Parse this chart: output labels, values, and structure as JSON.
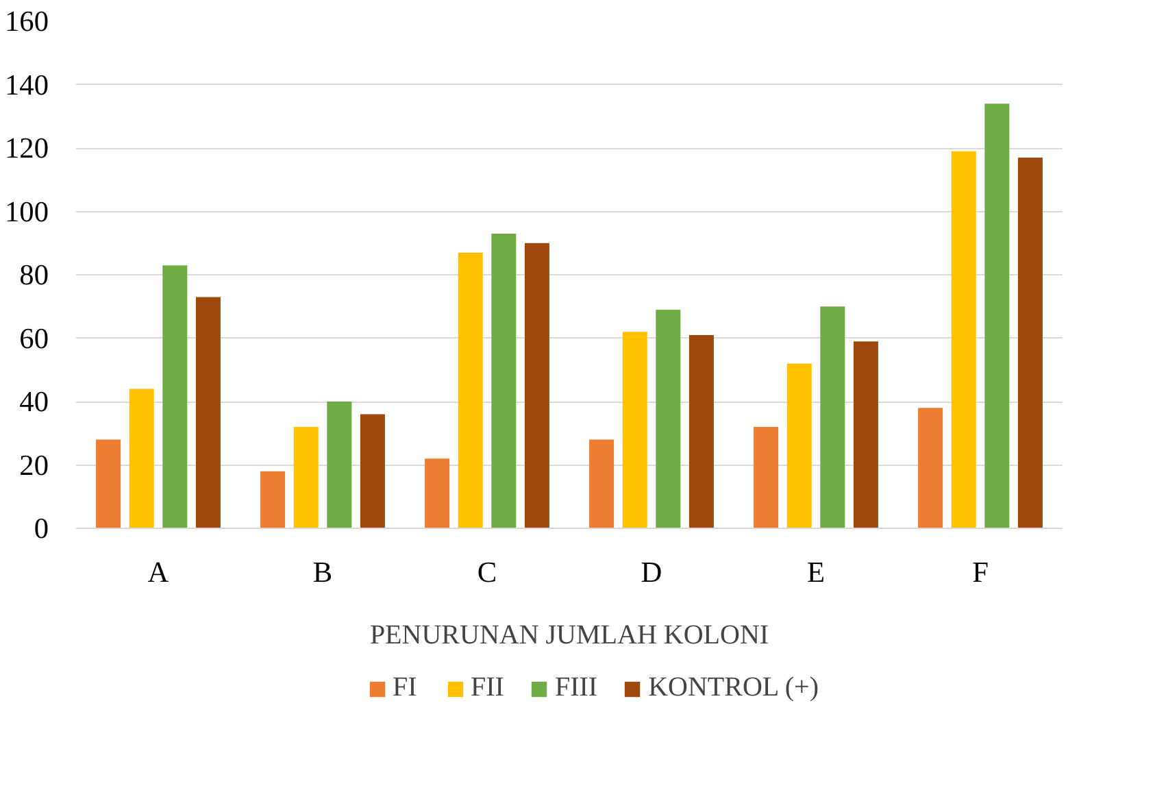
{
  "chart_data": {
    "type": "bar",
    "xlabel": "PENURUNAN JUMLAH KOLONI",
    "categories": [
      "A",
      "B",
      "C",
      "D",
      "E",
      "F"
    ],
    "series": [
      {
        "name": "FI",
        "color": "#ed7d31",
        "values": [
          28,
          18,
          22,
          28,
          32,
          38
        ]
      },
      {
        "name": "FII",
        "color": "#ffc000",
        "values": [
          44,
          32,
          87,
          62,
          52,
          119
        ]
      },
      {
        "name": "FIII",
        "color": "#70ad47",
        "values": [
          83,
          40,
          93,
          69,
          70,
          134
        ]
      },
      {
        "name": "KONTROL (+)",
        "color": "#9e480e",
        "values": [
          73,
          36,
          90,
          61,
          59,
          117
        ]
      }
    ],
    "ylim": [
      0,
      160
    ],
    "yticks": [
      0,
      20,
      40,
      60,
      80,
      100,
      120,
      140,
      160
    ],
    "grid": "y",
    "legend": "bottom"
  }
}
